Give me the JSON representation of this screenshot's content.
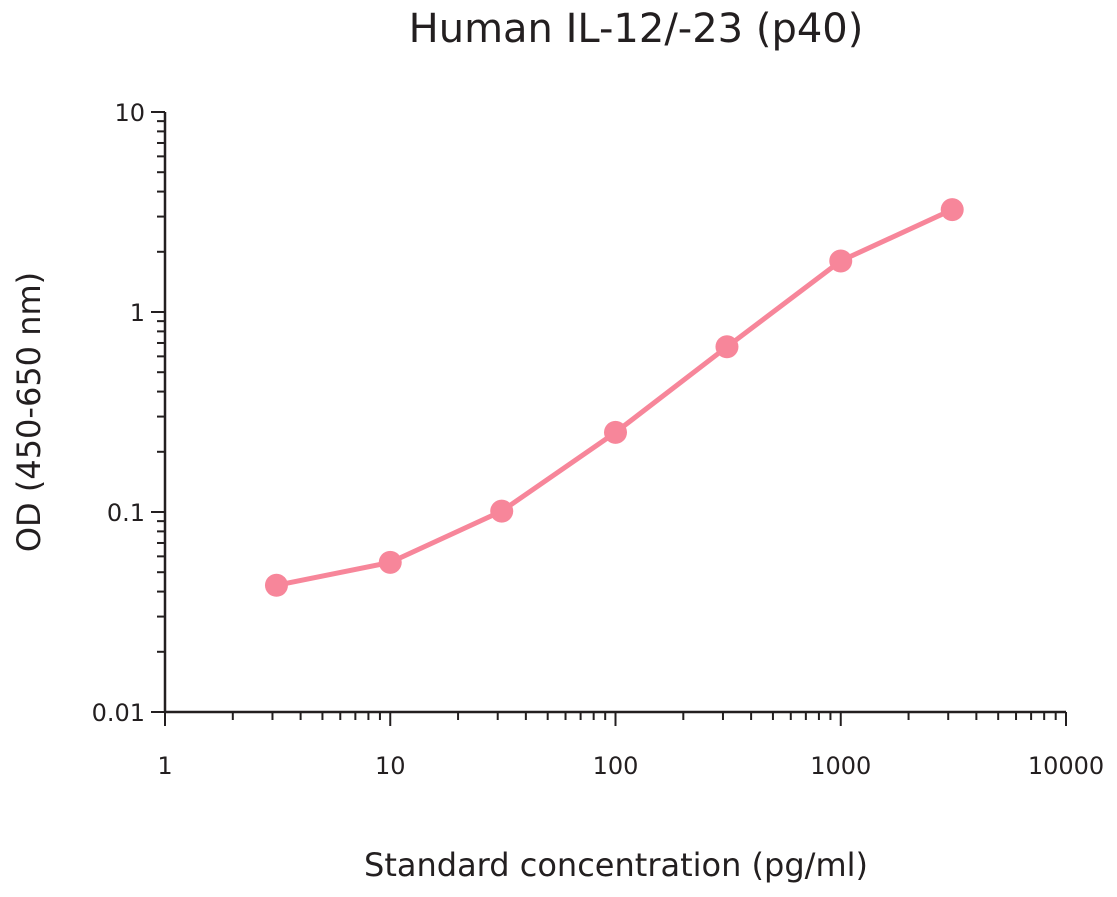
{
  "chart_data": {
    "type": "line",
    "title": "Human IL-12/-23 (p40)",
    "xlabel": "Standard concentration (pg/ml)",
    "ylabel": "OD (450-650 nm)",
    "x_scale": "log",
    "y_scale": "log",
    "xlim": [
      1,
      10000
    ],
    "ylim": [
      0.01,
      10
    ],
    "x_ticks": [
      "1",
      "10",
      "100",
      "1000",
      "10000"
    ],
    "y_ticks": [
      "10",
      "1",
      "0.1",
      "0.01"
    ],
    "grid": false,
    "legend": "none",
    "series": [
      {
        "x": [
          3.125,
          10,
          31.25,
          100,
          312.5,
          1000,
          3125
        ],
        "y": [
          0.043,
          0.056,
          0.101,
          0.25,
          0.67,
          1.8,
          3.25
        ],
        "color": "#f7869a"
      }
    ]
  }
}
